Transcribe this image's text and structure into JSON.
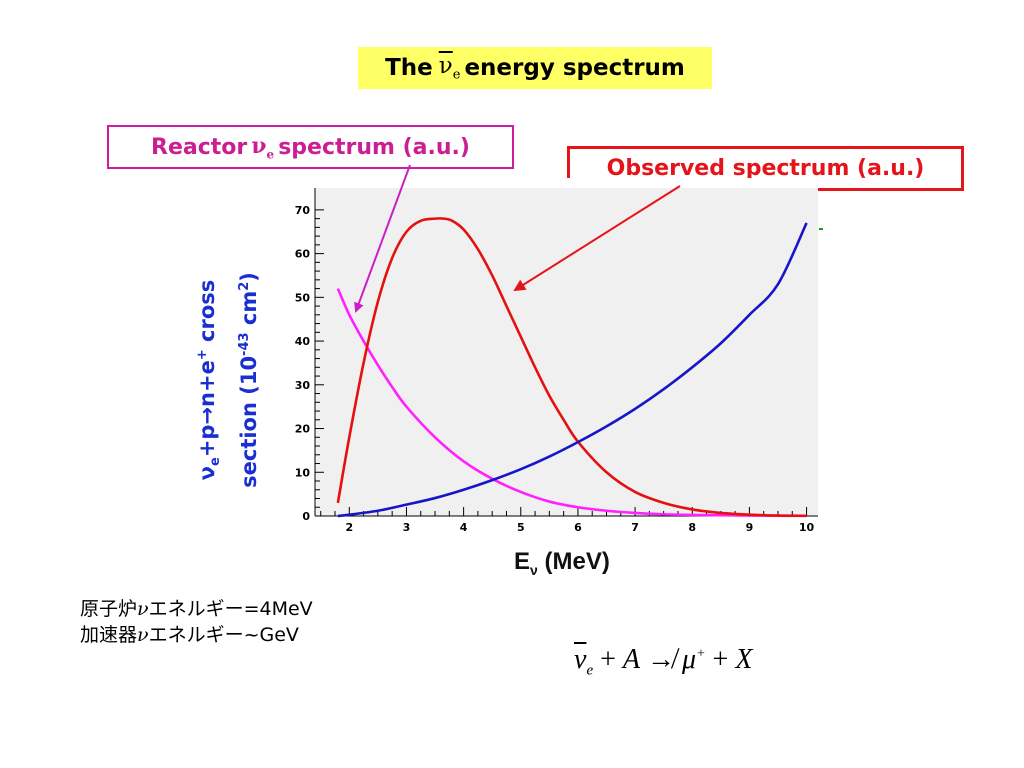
{
  "title": {
    "prefix": "The",
    "nu": "ν",
    "nu_sub": "e",
    "suffix": "energy spectrum"
  },
  "callouts": {
    "reactor": {
      "prefix": "Reactor",
      "nu": "ν",
      "nu_sub": "e",
      "suffix": "spectrum (a.u.)"
    },
    "observed": {
      "text": "Observed spectrum (a.u.)"
    }
  },
  "notes": {
    "line1_prefix": "原子炉",
    "line1_nu": "ν",
    "line1_suffix": "エネルギー=4MeV",
    "line2_prefix": "加速器",
    "line2_nu": "ν",
    "line2_suffix": "エネルギー~GeV"
  },
  "formula": {
    "nu": "ν",
    "nu_sub": "e",
    "plus1": " + ",
    "A": "A",
    "arrow": " ↛ ",
    "mu": "μ",
    "mu_sup": "+",
    "plus2": " + ",
    "X": "X"
  },
  "colors": {
    "reactor": "#ff22ff",
    "observed": "#e51010",
    "cross_section": "#1616c8",
    "plot_bg": "#f0f0f0",
    "title_bg": "#ffff66",
    "ylabel": "#1a2fd0"
  },
  "chart_data": {
    "type": "line",
    "xlabel": {
      "main": "E",
      "sub": "ν",
      "units": " (MeV)"
    },
    "ylabel": {
      "line1": "ν",
      "line1_sub": "e",
      "line1_rest": "+p→n+e",
      "line1_sup": "+",
      "line1_end": " cross",
      "line2": "section (10",
      "line2_sup": "-43",
      "line2_mid": " cm",
      "line2_sup2": "2",
      "line2_end": ")"
    },
    "xlim": [
      1.4,
      10.2
    ],
    "ylim": [
      0,
      75
    ],
    "xticks": [
      "2",
      "3",
      "4",
      "5",
      "6",
      "7",
      "8",
      "9",
      "10"
    ],
    "yticks": [
      "0",
      "10",
      "20",
      "30",
      "40",
      "50",
      "60",
      "70"
    ],
    "grid": false,
    "series": [
      {
        "key": "reactor",
        "x": [
          1.8,
          2.0,
          2.25,
          2.5,
          2.75,
          3.0,
          3.5,
          4.0,
          4.5,
          5.0,
          5.5,
          6.0,
          6.5,
          7.0,
          7.5,
          8.0,
          9.0,
          10.0
        ],
        "y": [
          52,
          46,
          40,
          34.5,
          29.5,
          25,
          18,
          12.5,
          8.5,
          5.5,
          3.3,
          2,
          1.2,
          0.7,
          0.4,
          0.25,
          0.1,
          0.05
        ]
      },
      {
        "key": "observed",
        "x": [
          1.8,
          2.0,
          2.25,
          2.5,
          2.75,
          3.0,
          3.25,
          3.5,
          3.65,
          3.8,
          4.0,
          4.25,
          4.5,
          4.75,
          5.0,
          5.25,
          5.5,
          5.75,
          6.0,
          6.5,
          7.0,
          7.5,
          8.0,
          8.5,
          9.0,
          9.5,
          10.0
        ],
        "y": [
          3,
          18,
          35,
          49,
          59,
          65,
          67.5,
          68,
          68,
          67.5,
          65.5,
          61,
          55,
          48,
          41,
          34,
          27.5,
          22,
          17,
          10,
          5.5,
          3,
          1.5,
          0.7,
          0.3,
          0.1,
          0.05
        ]
      },
      {
        "key": "cross_section",
        "x": [
          1.8,
          2.0,
          2.5,
          3.0,
          3.5,
          4.0,
          4.5,
          5.0,
          5.5,
          6.0,
          6.5,
          7.0,
          7.5,
          8.0,
          8.5,
          9.0,
          9.5,
          10.0
        ],
        "y": [
          0,
          0.3,
          1.2,
          2.6,
          4.1,
          6,
          8.2,
          10.7,
          13.6,
          16.9,
          20.5,
          24.5,
          29,
          34,
          39.5,
          46,
          53,
          67
        ]
      }
    ]
  }
}
